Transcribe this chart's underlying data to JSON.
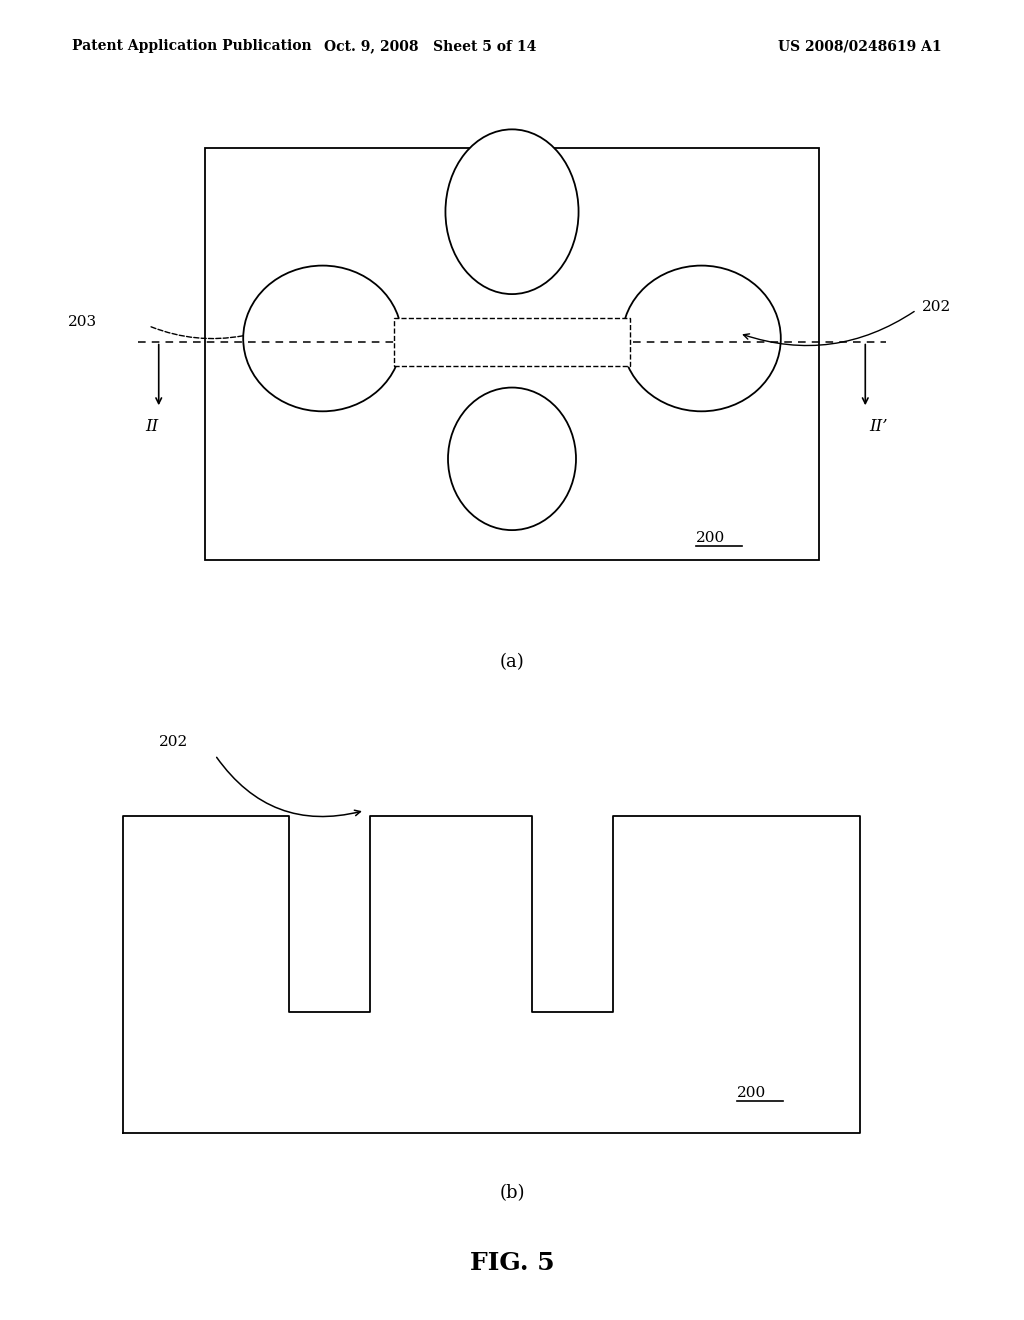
{
  "bg_color": "#ffffff",
  "line_color": "#000000",
  "header_left": "Patent Application Publication",
  "header_mid": "Oct. 9, 2008   Sheet 5 of 14",
  "header_right": "US 2008/0248619 A1",
  "fig_label_a": "(a)",
  "fig_label_b": "(b)",
  "fig_main": "FIG. 5",
  "label_200_a": "200",
  "label_200_b": "200",
  "label_202": "202",
  "label_203": "203",
  "label_II": "II",
  "label_IIp": "II’"
}
